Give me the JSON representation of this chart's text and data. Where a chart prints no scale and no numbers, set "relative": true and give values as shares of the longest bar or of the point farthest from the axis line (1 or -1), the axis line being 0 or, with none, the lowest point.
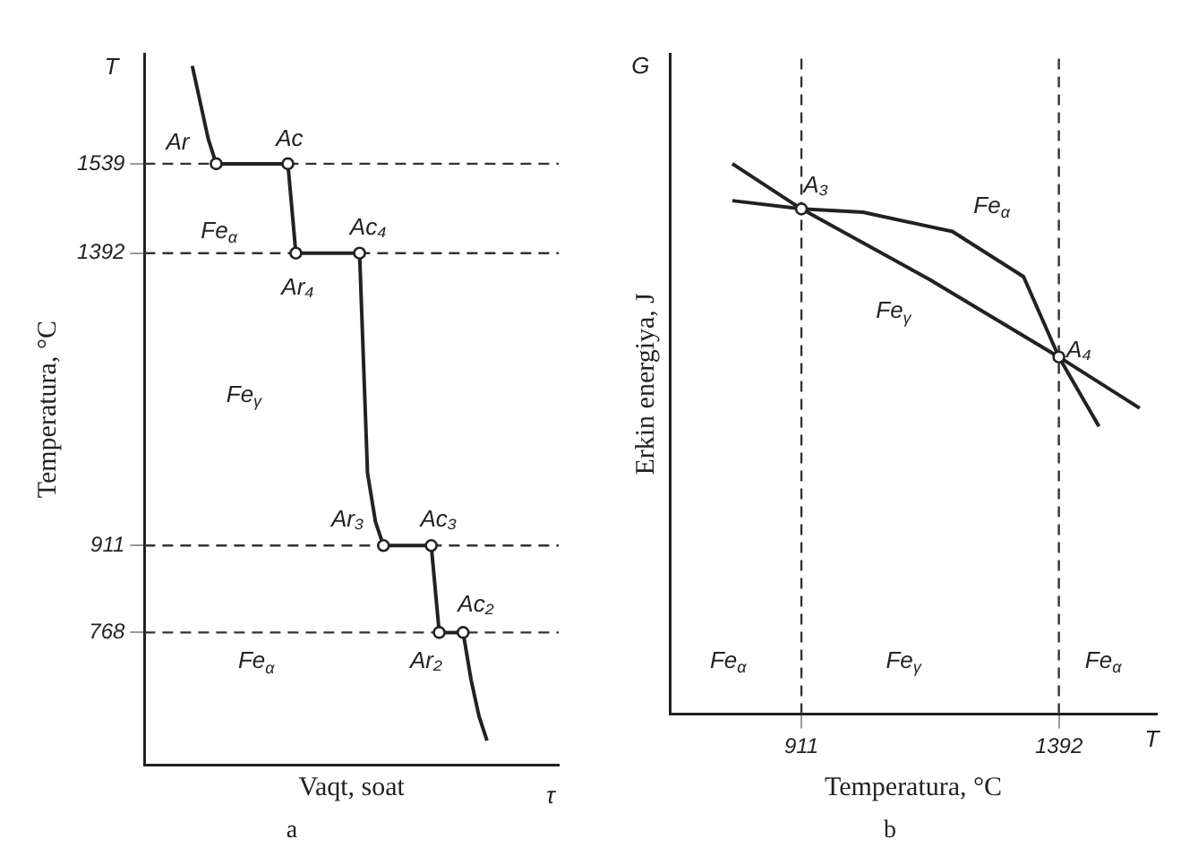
{
  "chart_data": [
    {
      "type": "line",
      "title": "a",
      "xlabel": "Vaqt, soat",
      "ylabel": "Temperatura, °C",
      "categories": [
        null,
        null,
        null,
        null,
        null,
        null,
        null,
        null,
        null,
        null,
        null,
        null,
        null,
        null,
        null,
        null,
        null,
        null,
        null,
        null,
        null,
        null,
        null,
        null,
        null,
        null,
        null,
        null,
        null,
        null,
        null,
        null,
        null,
        null,
        null,
        null,
        null,
        null,
        null,
        null,
        null,
        null,
        null,
        null,
        null,
        null,
        null,
        null,
        null,
        null,
        null,
        null,
        null
      ],
      "ylim": [
        550,
        1720
      ],
      "yticks": [
        768,
        911,
        1392,
        1539
      ],
      "tick_labels": "y",
      "grid": false,
      "legend": false,
      "line_style": "solid",
      "series": [
        {
          "color": "#222222",
          "marker": "none",
          "values": [
            null,
            null,
            null,
            null,
            null,
            null,
            1700,
            1640,
            1580,
            1539,
            1539,
            1539,
            1539,
            1539,
            1539,
            1539,
            1539,
            1539,
            1539,
            1392,
            1392,
            1392,
            1392,
            1392,
            1392,
            1392,
            1392,
            1392,
            1030,
            950,
            911,
            911,
            911,
            911,
            911,
            911,
            911,
            768,
            768,
            768,
            768,
            690,
            630,
            590,
            null,
            null,
            null,
            null,
            null,
            null,
            null,
            null,
            null
          ]
        },
        {
          "type": "scatter",
          "color": "#222222",
          "marker": "circle",
          "values": [
            null,
            null,
            null,
            null,
            null,
            null,
            null,
            null,
            null,
            1539,
            null,
            null,
            null,
            null,
            null,
            null,
            null,
            null,
            1539,
            1392,
            null,
            null,
            null,
            null,
            null,
            null,
            null,
            1392,
            null,
            null,
            911,
            null,
            null,
            null,
            null,
            null,
            911,
            768,
            null,
            null,
            768,
            null,
            null,
            null,
            null,
            null,
            null,
            null,
            null,
            null,
            null,
            null,
            null
          ]
        }
      ],
      "ref_lines": [
        {
          "axis": "y",
          "value": 1539,
          "line_style": "dashed"
        },
        {
          "axis": "y",
          "value": 1392,
          "line_style": "dashed"
        },
        {
          "axis": "y",
          "value": 911,
          "line_style": "dashed"
        },
        {
          "axis": "y",
          "value": 768,
          "line_style": "dashed"
        }
      ],
      "annotations": [
        "T",
        "τ",
        "Ar",
        "Ac",
        "Fe$_{α}$",
        "Ar₄",
        "Ac₄",
        "Fe$_{γ}$",
        "Ar₃",
        "Ac₃",
        "Ac₂",
        "Ar₂",
        "Fe$_{α}$"
      ]
    },
    {
      "type": "line",
      "title": "b",
      "xlabel": "Temperatura, °C",
      "ylabel": "Erkin energiya, J",
      "relative": true,
      "xlim": [
        665,
        1575
      ],
      "xticks": [
        911,
        1392
      ],
      "tick_labels": "x",
      "grid": false,
      "legend": false,
      "line_style": "solid",
      "series": [
        {
          "name": "Fe$_{α}$",
          "color": "#222222",
          "marker": "none",
          "x": [
            782,
            911,
            1026,
            1193,
            1326,
            1392,
            1467
          ],
          "values": [
            0.933,
            0.918,
            0.912,
            0.877,
            0.795,
            0.649,
            0.523
          ]
        },
        {
          "name": "Fe$_{γ}$",
          "color": "#222222",
          "marker": "none",
          "x": [
            782,
            911,
            1150,
            1392,
            1543
          ],
          "values": [
            1.0,
            0.918,
            0.79,
            0.649,
            0.556
          ]
        },
        {
          "type": "scatter",
          "color": "#222222",
          "marker": "circle",
          "x": [
            911,
            1392
          ],
          "values": [
            0.918,
            0.649
          ]
        }
      ],
      "ref_lines": [
        {
          "axis": "x",
          "value": 911,
          "line_style": "dashed"
        },
        {
          "axis": "x",
          "value": 1392,
          "line_style": "dashed"
        }
      ],
      "annotations": [
        "G",
        "T",
        "A₃",
        "A₄",
        "Fe$_{α}$",
        "Fe$_{γ}$",
        "Fe$_{α}$"
      ]
    }
  ]
}
